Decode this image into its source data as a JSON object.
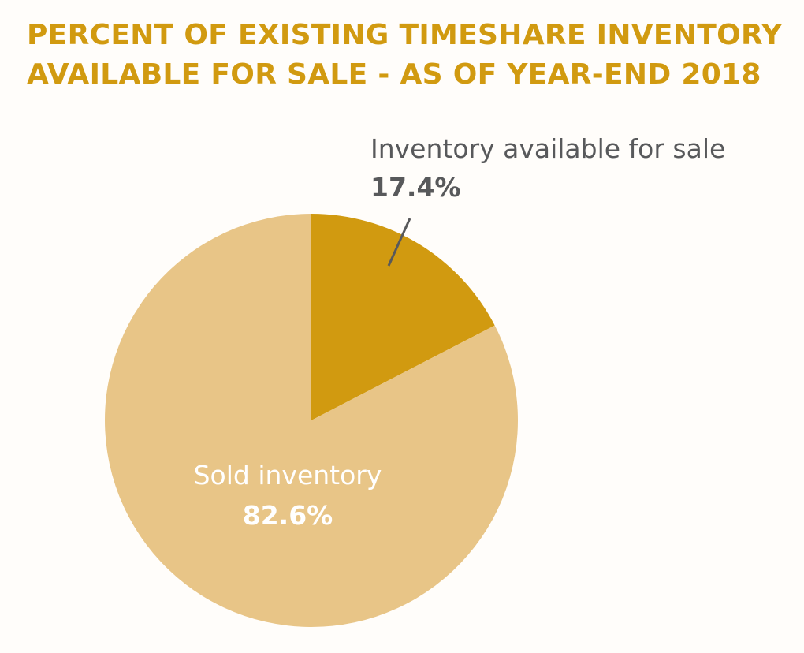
{
  "chart_data": {
    "type": "pie",
    "title_lines": [
      "PERCENT OF EXISTING TIMESHARE INVENTORY",
      "AVAILABLE FOR SALE - AS OF YEAR-END 2018"
    ],
    "slices": [
      {
        "label": "Inventory available for sale",
        "value": 17.4,
        "display": "17.4%",
        "color": "#d19a10"
      },
      {
        "label": "Sold inventory",
        "value": 82.6,
        "display": "82.6%",
        "color": "#e8c587"
      }
    ],
    "label_colors": {
      "outside": "#58595b",
      "inside": "#ffffff"
    },
    "title_color": "#d19a10",
    "start_angle": "12 o'clock",
    "direction": "clockwise"
  }
}
